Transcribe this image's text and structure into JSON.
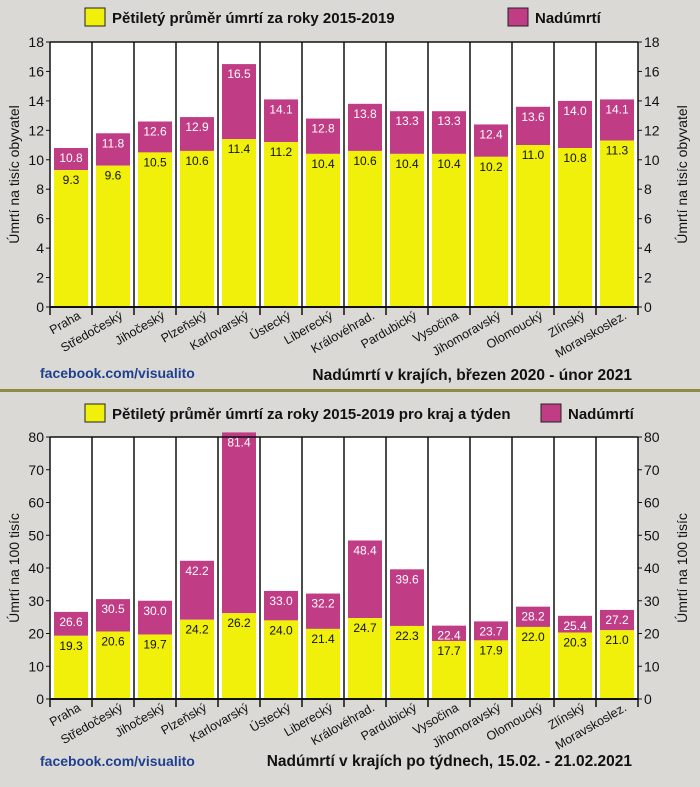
{
  "source_label": "facebook.com/visualito",
  "colors": {
    "baseline": "#f0f00a",
    "excess": "#c03d86",
    "grid": "#111111"
  },
  "chart_data": [
    {
      "type": "bar",
      "stacked": true,
      "title": "Nadúmrtí v krajích, březen 2020 - únor 2021",
      "ylabel": "Úmrtí na tisíc obyvatel",
      "ylim": [
        0,
        18
      ],
      "yticks": [
        0,
        2,
        4,
        6,
        8,
        10,
        12,
        14,
        16,
        18
      ],
      "legend": [
        "Pětiletý průměr úmrtí za roky 2015-2019",
        "Nadúmrtí"
      ],
      "legend_placement": "top",
      "grid": true,
      "categories": [
        "Praha",
        "Středočeský",
        "Jihočeský",
        "Plzeňský",
        "Karlovarský",
        "Ústecký",
        "Liberecký",
        "Královéhrad.",
        "Pardubický",
        "Vysočina",
        "Jihomoravský",
        "Olomoucký",
        "Zlínský",
        "Moravskoslez."
      ],
      "baseline_values": [
        9.3,
        9.6,
        10.5,
        10.6,
        11.4,
        11.2,
        10.4,
        10.6,
        10.4,
        10.4,
        10.2,
        11.0,
        10.8,
        11.3
      ],
      "total_values": [
        10.8,
        11.8,
        12.6,
        12.9,
        16.5,
        14.1,
        12.8,
        13.8,
        13.3,
        13.3,
        12.4,
        13.6,
        14.0,
        14.1
      ],
      "baseline_labels": [
        "9.3",
        "9.6",
        "10.5",
        "10.6",
        "11.4",
        "11.2",
        "10.4",
        "10.6",
        "10.4",
        "10.4",
        "10.2",
        "11.0",
        "10.8",
        "11.3"
      ],
      "total_labels": [
        "10.8",
        "11.8",
        "12.6",
        "12.9",
        "16.5",
        "14.1",
        "12.8",
        "13.8",
        "13.3",
        "13.3",
        "12.4",
        "13.6",
        "14.0",
        "14.1"
      ]
    },
    {
      "type": "bar",
      "stacked": true,
      "title": "Nadúmrtí v krajích po týdnech, 15.02. - 21.02.2021",
      "ylabel": "Úmrtí na 100 tisíc",
      "ylim": [
        0,
        80
      ],
      "yticks": [
        0,
        10,
        20,
        30,
        40,
        50,
        60,
        70,
        80
      ],
      "legend": [
        "Pětiletý průměr úmrtí za roky 2015-2019 pro kraj a týden",
        "Nadúmrtí"
      ],
      "legend_placement": "top",
      "grid": true,
      "categories": [
        "Praha",
        "Středočeský",
        "Jihočeský",
        "Plzeňský",
        "Karlovarský",
        "Ústecký",
        "Liberecký",
        "Královéhrad.",
        "Pardubický",
        "Vysočina",
        "Jihomoravský",
        "Olomoucký",
        "Zlínský",
        "Moravskoslez."
      ],
      "baseline_values": [
        19.3,
        20.6,
        19.7,
        24.2,
        26.2,
        24.0,
        21.4,
        24.7,
        22.3,
        17.7,
        17.9,
        22.0,
        20.3,
        21.0
      ],
      "total_values": [
        26.6,
        30.5,
        30.0,
        42.2,
        81.4,
        33.0,
        32.2,
        48.4,
        39.6,
        22.4,
        23.7,
        28.2,
        25.4,
        27.2
      ],
      "baseline_labels": [
        "19.3",
        "20.6",
        "19.7",
        "24.2",
        "26.2",
        "24.0",
        "21.4",
        "24.7",
        "22.3",
        "17.7",
        "17.9",
        "22.0",
        "20.3",
        "21.0"
      ],
      "total_labels": [
        "26.6",
        "30.5",
        "30.0",
        "42.2",
        "81.4",
        "33.0",
        "32.2",
        "48.4",
        "39.6",
        "22.4",
        "23.7",
        "28.2",
        "25.4",
        "27.2"
      ]
    }
  ]
}
